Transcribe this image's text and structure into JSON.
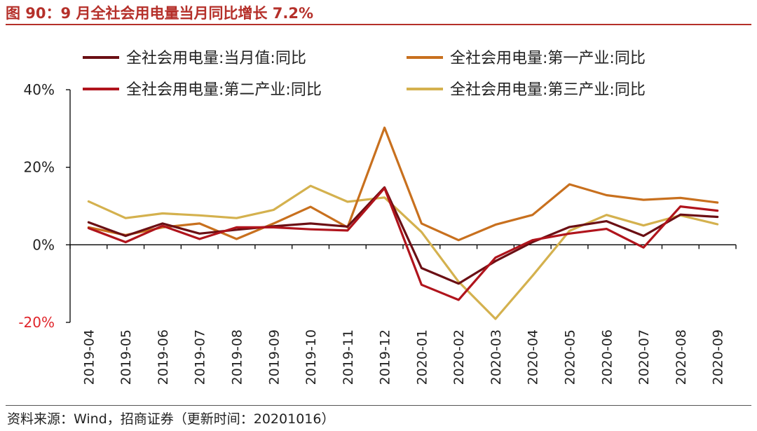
{
  "figure": {
    "title": "图 90：9 月全社会用电量当月同比增长 7.2%",
    "source": "资料来源：Wind，招商证券（更新时间：20201016）"
  },
  "colors": {
    "title": "#b5302a",
    "axis": "#000000",
    "negative_tick": "#e0252b",
    "series": [
      "#6b0f14",
      "#c8701e",
      "#b0141c",
      "#d4b14e"
    ]
  },
  "chart_data": {
    "type": "line",
    "title": "9 月全社会用电量当月同比增长 7.2%",
    "xlabel": "",
    "ylabel": "",
    "ylim": [
      -20,
      40
    ],
    "yticks": [
      -20,
      0,
      20,
      40
    ],
    "ytick_labels": [
      "-20%",
      "0%",
      "20%",
      "40%"
    ],
    "grid": false,
    "legend_position": "top",
    "x": [
      "2019-04",
      "2019-05",
      "2019-06",
      "2019-07",
      "2019-08",
      "2019-09",
      "2019-10",
      "2019-11",
      "2019-12",
      "2020-01",
      "2020-02",
      "2020-03",
      "2020-04",
      "2020-05",
      "2020-06",
      "2020-07",
      "2020-08",
      "2020-09"
    ],
    "series": [
      {
        "name": "全社会用电量:当月值:同比",
        "values": [
          5.8,
          2.3,
          5.5,
          2.9,
          3.9,
          4.8,
          5.5,
          4.7,
          14.8,
          -6.0,
          -10.0,
          -4.2,
          0.7,
          4.6,
          6.1,
          2.3,
          7.8,
          7.2
        ]
      },
      {
        "name": "全社会用电量:第一产业:同比",
        "values": [
          4.5,
          2.5,
          4.5,
          5.5,
          1.5,
          5.5,
          9.8,
          4.5,
          30.2,
          5.5,
          1.2,
          5.2,
          7.7,
          15.6,
          12.8,
          11.6,
          12.1,
          10.9
        ]
      },
      {
        "name": "全社会用电量:第二产业:同比",
        "values": [
          4.3,
          0.7,
          4.9,
          1.5,
          4.5,
          4.5,
          4.0,
          3.7,
          14.6,
          -10.3,
          -14.2,
          -3.3,
          1.2,
          2.9,
          4.1,
          -0.7,
          9.9,
          8.8
        ]
      },
      {
        "name": "全社会用电量:第三产业:同比",
        "values": [
          11.2,
          6.9,
          8.1,
          7.6,
          6.9,
          9.0,
          15.2,
          11.1,
          12.2,
          3.3,
          -9.5,
          -19.1,
          -8.0,
          3.6,
          7.7,
          5.0,
          7.6,
          5.3
        ]
      }
    ]
  }
}
